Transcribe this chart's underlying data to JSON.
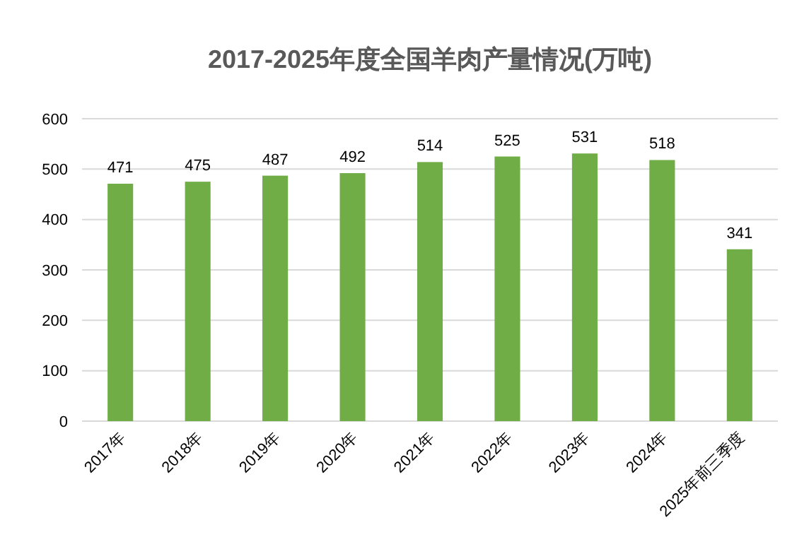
{
  "chart_data": {
    "type": "bar",
    "title": "2017-2025年度全国羊肉产量情况(万吨)",
    "categories": [
      "2017年",
      "2018年",
      "2019年",
      "2020年",
      "2021年",
      "2022年",
      "2023年",
      "2024年",
      "2025年前三季度"
    ],
    "values": [
      471,
      475,
      487,
      492,
      514,
      525,
      531,
      518,
      341
    ],
    "color": "#70ad47",
    "ylim": [
      0,
      600
    ],
    "yticks": [
      0,
      100,
      200,
      300,
      400,
      500,
      600
    ],
    "grid": "y",
    "data_labels": true
  }
}
